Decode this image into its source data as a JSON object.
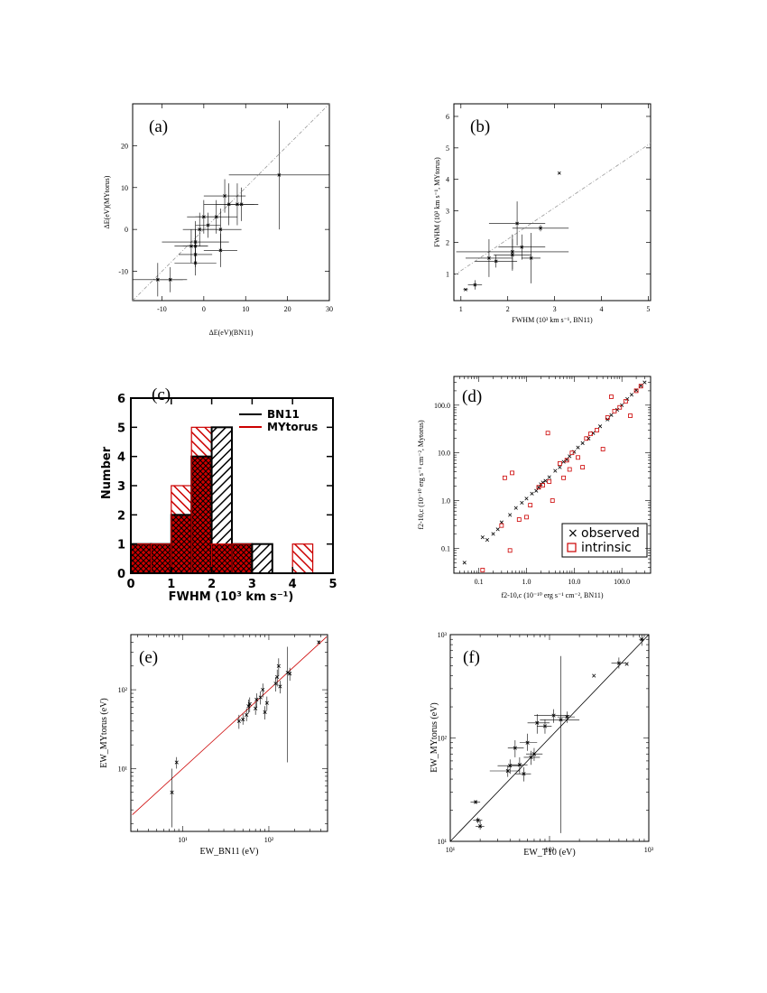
{
  "figure": {
    "bg": "#ffffff",
    "ink": "#000000",
    "red": "#cc0000"
  },
  "chart_data": [
    {
      "id": "a",
      "type": "scatter",
      "panel_label": "(a)",
      "xlabel": "ΔE(eV)(BN11)",
      "ylabel": "ΔE(eV)(MYtorus)",
      "xlim": [
        -17,
        30
      ],
      "ylim": [
        -17,
        30
      ],
      "xticks": [
        -10,
        0,
        10,
        20,
        30
      ],
      "yticks": [
        -10,
        0,
        10,
        20
      ],
      "one_to_one": true,
      "points": [
        {
          "x": -11,
          "y": -12,
          "xerr": 6,
          "yerr": 4
        },
        {
          "x": -8,
          "y": -12,
          "xerr": 4,
          "yerr": 3
        },
        {
          "x": -3,
          "y": -4,
          "xerr": 4,
          "yerr": 4
        },
        {
          "x": -2,
          "y": -3,
          "xerr": 8,
          "yerr": 5
        },
        {
          "x": -2,
          "y": -8,
          "xerr": 5,
          "yerr": 3
        },
        {
          "x": -2,
          "y": -6,
          "xerr": 4,
          "yerr": 3
        },
        {
          "x": -2,
          "y": -4,
          "xerr": 3,
          "yerr": 4
        },
        {
          "x": -1,
          "y": 0,
          "xerr": 4,
          "yerr": 4
        },
        {
          "x": 0,
          "y": 3,
          "xerr": 4,
          "yerr": 4
        },
        {
          "x": 1,
          "y": 1,
          "xerr": 3,
          "yerr": 3
        },
        {
          "x": 3,
          "y": 3,
          "xerr": 5,
          "yerr": 4
        },
        {
          "x": 4,
          "y": -5,
          "xerr": 4,
          "yerr": 4
        },
        {
          "x": 4,
          "y": 0,
          "xerr": 5,
          "yerr": 5
        },
        {
          "x": 5,
          "y": 8,
          "xerr": 5,
          "yerr": 4
        },
        {
          "x": 6,
          "y": 6,
          "xerr": 6,
          "yerr": 5
        },
        {
          "x": 8,
          "y": 6,
          "xerr": 5,
          "yerr": 5
        },
        {
          "x": 9,
          "y": 6,
          "xerr": 4,
          "yerr": 4
        },
        {
          "x": 18,
          "y": 13,
          "xerr": 12,
          "yerr": 13
        }
      ]
    },
    {
      "id": "b",
      "type": "scatter",
      "panel_label": "(b)",
      "xlabel": "FWHM (10³ km s⁻¹, BN11)",
      "ylabel": "FWHM (10³ km s⁻¹, MYtorus)",
      "xlim": [
        0.85,
        5.05
      ],
      "ylim": [
        0.15,
        6.4
      ],
      "xticks": [
        1,
        2,
        3,
        4,
        5
      ],
      "yticks": [
        1,
        2,
        3,
        4,
        5,
        6
      ],
      "one_to_one": true,
      "points": [
        {
          "x": 1.1,
          "y": 0.5,
          "xerr": 0.05,
          "yerr": 0.02
        },
        {
          "x": 1.3,
          "y": 0.65,
          "xerr": 0.15,
          "yerr": 0.15
        },
        {
          "x": 1.6,
          "y": 1.5,
          "xerr": 0.5,
          "yerr": 0.6
        },
        {
          "x": 1.75,
          "y": 1.4,
          "xerr": 0.45,
          "yerr": 0.2
        },
        {
          "x": 2.1,
          "y": 1.7,
          "xerr": 1.2,
          "yerr": 0.55
        },
        {
          "x": 2.1,
          "y": 1.6,
          "xerr": 0.4,
          "yerr": 0.5
        },
        {
          "x": 2.2,
          "y": 2.6,
          "xerr": 0.6,
          "yerr": 0.7
        },
        {
          "x": 2.3,
          "y": 1.85,
          "xerr": 0.5,
          "yerr": 0.4
        },
        {
          "x": 2.5,
          "y": 1.5,
          "xerr": 0.2,
          "yerr": 0.8
        },
        {
          "x": 2.7,
          "y": 2.45,
          "xerr": 0.6,
          "yerr": 0.1
        },
        {
          "x": 3.1,
          "y": 4.2,
          "xerr": 0.0,
          "yerr": 0.0
        }
      ]
    },
    {
      "id": "c",
      "type": "bar",
      "panel_label": "(c)",
      "xlabel": "FWHM (10³ km s⁻¹)",
      "ylabel": "Number",
      "xlim": [
        0,
        5
      ],
      "ylim": [
        0,
        6
      ],
      "xticks": [
        0,
        1,
        2,
        3,
        4,
        5
      ],
      "yticks": [
        0,
        1,
        2,
        3,
        4,
        5,
        6
      ],
      "bin_edges": [
        0,
        0.5,
        1.0,
        1.5,
        2.0,
        2.5,
        3.0,
        3.5,
        4.0,
        4.5,
        5.0
      ],
      "series": [
        {
          "name": "BN11",
          "color": "#000000",
          "values": [
            1,
            1,
            2,
            4,
            5,
            1,
            1,
            0,
            0,
            0
          ]
        },
        {
          "name": "MYtorus",
          "color": "#cc0000",
          "values": [
            1,
            1,
            3,
            5,
            1,
            1,
            0,
            0,
            1,
            0
          ]
        }
      ],
      "legend": "top-right"
    },
    {
      "id": "d",
      "type": "scatter",
      "panel_label": "(d)",
      "xlabel": "f2-10,c (10⁻¹⁰ erg s⁻¹ cm⁻², BN11)",
      "ylabel": "f2-10,c (10⁻¹⁰ erg s⁻¹ cm⁻², Mytorus)",
      "xscale": "log",
      "yscale": "log",
      "xlim": [
        0.03,
        400
      ],
      "ylim": [
        0.03,
        400
      ],
      "xticks": [
        0.1,
        1.0,
        10.0,
        100.0
      ],
      "yticks": [
        0.1,
        1.0,
        10.0,
        100.0
      ],
      "tick_labels": [
        "0.1",
        "1.0",
        "10.0",
        "100.0"
      ],
      "legend": "bottom-right",
      "series": [
        {
          "name": "observed",
          "marker": "x",
          "color": "#000000",
          "points": [
            [
              0.05,
              0.05
            ],
            [
              0.12,
              0.17
            ],
            [
              0.15,
              0.15
            ],
            [
              0.2,
              0.2
            ],
            [
              0.25,
              0.25
            ],
            [
              0.3,
              0.35
            ],
            [
              0.45,
              0.5
            ],
            [
              0.6,
              0.7
            ],
            [
              0.8,
              0.9
            ],
            [
              1.0,
              1.1
            ],
            [
              1.3,
              1.4
            ],
            [
              1.6,
              1.6
            ],
            [
              1.8,
              1.9
            ],
            [
              2.0,
              2.2
            ],
            [
              2.2,
              2.4
            ],
            [
              2.5,
              2.6
            ],
            [
              3.0,
              3.1
            ],
            [
              4.0,
              4.2
            ],
            [
              5.0,
              5.0
            ],
            [
              6.0,
              6.5
            ],
            [
              7.0,
              7.2
            ],
            [
              8.0,
              8.5
            ],
            [
              10.0,
              10.5
            ],
            [
              12.0,
              13.0
            ],
            [
              15.0,
              16.0
            ],
            [
              20.0,
              20.0
            ],
            [
              25.0,
              26.0
            ],
            [
              35.0,
              36.0
            ],
            [
              50.0,
              50.0
            ],
            [
              60.0,
              62.0
            ],
            [
              80.0,
              80.0
            ],
            [
              100.0,
              100.0
            ],
            [
              130.0,
              135.0
            ],
            [
              160.0,
              165.0
            ],
            [
              200.0,
              205.0
            ],
            [
              250.0,
              255.0
            ],
            [
              300.0,
              300.0
            ]
          ]
        },
        {
          "name": "intrinsic",
          "marker": "square",
          "color": "#cc0000",
          "points": [
            [
              0.12,
              0.035
            ],
            [
              0.3,
              0.3
            ],
            [
              0.35,
              3.0
            ],
            [
              0.45,
              0.09
            ],
            [
              0.5,
              3.8
            ],
            [
              0.7,
              0.4
            ],
            [
              1.0,
              0.45
            ],
            [
              1.2,
              0.8
            ],
            [
              1.8,
              1.9
            ],
            [
              2.2,
              2.1
            ],
            [
              2.8,
              26.0
            ],
            [
              3.0,
              2.5
            ],
            [
              3.5,
              1.0
            ],
            [
              5.0,
              6.0
            ],
            [
              6.0,
              3.0
            ],
            [
              7.0,
              7.0
            ],
            [
              8.0,
              4.5
            ],
            [
              9.0,
              10.0
            ],
            [
              12.0,
              8.0
            ],
            [
              15.0,
              5.0
            ],
            [
              18.0,
              20.0
            ],
            [
              22.0,
              25.0
            ],
            [
              30.0,
              30.0
            ],
            [
              40.0,
              12.0
            ],
            [
              50.0,
              55.0
            ],
            [
              60.0,
              150.0
            ],
            [
              70.0,
              75.0
            ],
            [
              90.0,
              90.0
            ],
            [
              120.0,
              120.0
            ],
            [
              150.0,
              60.0
            ],
            [
              200.0,
              200.0
            ],
            [
              250.0,
              250.0
            ]
          ]
        }
      ]
    },
    {
      "id": "e",
      "type": "scatter",
      "panel_label": "(e)",
      "xlabel": "EW_BN11 (eV)",
      "ylabel": "EW_MYtorus (eV)",
      "xscale": "log",
      "yscale": "log",
      "xlim": [
        2.5,
        480
      ],
      "ylim": [
        1.6,
        500
      ],
      "xticks": [
        10,
        100
      ],
      "yticks": [
        10,
        100
      ],
      "tick_labels": [
        "10¹",
        "10²"
      ],
      "one_to_one": true,
      "line_color": "#cc0000",
      "points": [
        {
          "x": 7.5,
          "y": 5,
          "lo": 1.8,
          "hi": 10
        },
        {
          "x": 8.5,
          "y": 12,
          "lo": 10,
          "hi": 14
        },
        {
          "x": 45,
          "y": 40,
          "lo": 32,
          "hi": 48
        },
        {
          "x": 50,
          "y": 42,
          "lo": 36,
          "hi": 50
        },
        {
          "x": 55,
          "y": 48,
          "lo": 40,
          "hi": 58
        },
        {
          "x": 58,
          "y": 62,
          "lo": 50,
          "hi": 75
        },
        {
          "x": 60,
          "y": 66,
          "lo": 52,
          "hi": 80
        },
        {
          "x": 70,
          "y": 58,
          "lo": 48,
          "hi": 70
        },
        {
          "x": 72,
          "y": 75,
          "lo": 60,
          "hi": 90
        },
        {
          "x": 80,
          "y": 80,
          "lo": 65,
          "hi": 95
        },
        {
          "x": 85,
          "y": 100,
          "lo": 80,
          "hi": 120
        },
        {
          "x": 90,
          "y": 52,
          "lo": 42,
          "hi": 62
        },
        {
          "x": 95,
          "y": 68,
          "lo": 55,
          "hi": 82
        },
        {
          "x": 120,
          "y": 120,
          "lo": 95,
          "hi": 145
        },
        {
          "x": 125,
          "y": 145,
          "lo": 110,
          "hi": 180
        },
        {
          "x": 130,
          "y": 200,
          "lo": 150,
          "hi": 250
        },
        {
          "x": 135,
          "y": 110,
          "lo": 90,
          "hi": 130
        },
        {
          "x": 165,
          "y": 165,
          "lo": 12,
          "hi": 350
        },
        {
          "x": 175,
          "y": 160,
          "lo": 130,
          "hi": 190
        },
        {
          "x": 380,
          "y": 400,
          "lo": 380,
          "hi": 420
        }
      ]
    },
    {
      "id": "f",
      "type": "scatter",
      "panel_label": "(f)",
      "xlabel": "EW_T10 (eV)",
      "ylabel": "EW_MYtorus (eV)",
      "xscale": "log",
      "yscale": "log",
      "xlim": [
        10,
        1000
      ],
      "ylim": [
        10,
        1000
      ],
      "xticks": [
        10,
        100,
        1000
      ],
      "yticks": [
        10,
        100,
        1000
      ],
      "tick_labels": [
        "10¹",
        "10²",
        "10³"
      ],
      "one_to_one": true,
      "line_color": "#000000",
      "points": [
        {
          "x": 18,
          "y": 24,
          "xerr": [
            16,
            20
          ],
          "yerr": [
            23,
            25
          ]
        },
        {
          "x": 19,
          "y": 16,
          "xerr": [
            17,
            21
          ],
          "yerr": [
            15,
            17
          ]
        },
        {
          "x": 20,
          "y": 14,
          "xerr": [
            18,
            22
          ],
          "yerr": [
            13,
            16
          ]
        },
        {
          "x": 38,
          "y": 48,
          "xerr": [
            25,
            50
          ],
          "yerr": [
            42,
            54
          ]
        },
        {
          "x": 40,
          "y": 54,
          "xerr": [
            30,
            52
          ],
          "yerr": [
            45,
            62
          ]
        },
        {
          "x": 45,
          "y": 80,
          "xerr": [
            38,
            55
          ],
          "yerr": [
            65,
            95
          ]
        },
        {
          "x": 50,
          "y": 55,
          "xerr": [
            40,
            60
          ],
          "yerr": [
            45,
            65
          ]
        },
        {
          "x": 55,
          "y": 45,
          "xerr": [
            45,
            65
          ],
          "yerr": [
            38,
            52
          ]
        },
        {
          "x": 60,
          "y": 90,
          "xerr": [
            50,
            75
          ],
          "yerr": [
            75,
            110
          ]
        },
        {
          "x": 65,
          "y": 65,
          "xerr": [
            55,
            80
          ],
          "yerr": [
            55,
            75
          ]
        },
        {
          "x": 70,
          "y": 70,
          "xerr": [
            58,
            85
          ],
          "yerr": [
            60,
            80
          ]
        },
        {
          "x": 75,
          "y": 140,
          "xerr": [
            60,
            100
          ],
          "yerr": [
            110,
            170
          ]
        },
        {
          "x": 90,
          "y": 130,
          "xerr": [
            75,
            105
          ],
          "yerr": [
            110,
            150
          ]
        },
        {
          "x": 110,
          "y": 165,
          "xerr": [
            70,
            160
          ],
          "yerr": [
            140,
            190
          ]
        },
        {
          "x": 130,
          "y": 150,
          "xerr": [
            80,
            200
          ],
          "yerr": [
            12,
            620
          ]
        },
        {
          "x": 150,
          "y": 160,
          "xerr": [
            120,
            180
          ],
          "yerr": [
            140,
            180
          ]
        },
        {
          "x": 280,
          "y": 400,
          "xerr": [
            280,
            280
          ],
          "yerr": [
            400,
            400
          ]
        },
        {
          "x": 500,
          "y": 530,
          "xerr": [
            420,
            580
          ],
          "yerr": [
            470,
            600
          ]
        },
        {
          "x": 600,
          "y": 520,
          "xerr": [
            600,
            600
          ],
          "yerr": [
            520,
            520
          ]
        },
        {
          "x": 850,
          "y": 900,
          "xerr": [
            800,
            900
          ],
          "yerr": [
            780,
            1000
          ]
        }
      ]
    }
  ]
}
